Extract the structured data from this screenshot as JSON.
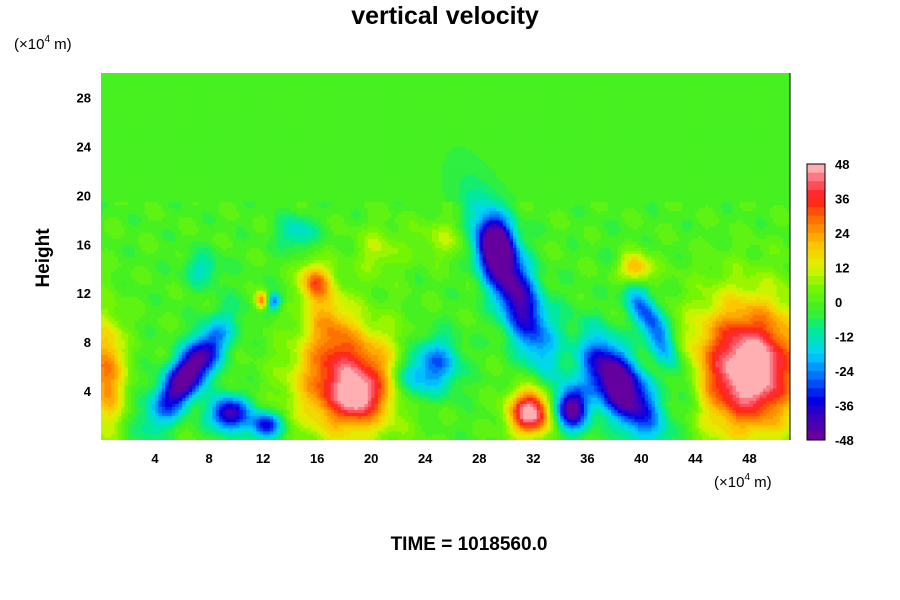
{
  "chart_data": {
    "type": "heatmap",
    "title": "vertical velocity",
    "ylabel": "Height",
    "y_unit": {
      "prefix": "(×10",
      "exp": "4",
      "suffix": " m)"
    },
    "x_unit": {
      "prefix": "(×10",
      "exp": "4",
      "suffix": " m)"
    },
    "xlim": [
      0,
      51
    ],
    "ylim": [
      0,
      30
    ],
    "x_ticks": [
      4,
      8,
      12,
      16,
      20,
      24,
      28,
      32,
      36,
      40,
      44,
      48
    ],
    "y_ticks": [
      4,
      8,
      12,
      16,
      20,
      24,
      28
    ],
    "colorbar": {
      "range": [
        -48,
        48
      ],
      "ticks": [
        48,
        36,
        24,
        12,
        0,
        -12,
        -24,
        -36,
        -48
      ],
      "levels": 32
    },
    "features": [
      {
        "x": 6.5,
        "y": 5.5,
        "sx": 1.1,
        "sy": 2.6,
        "v": -52,
        "tilt": -0.55
      },
      {
        "x": 9.5,
        "y": 2.2,
        "sx": 1.0,
        "sy": 1.0,
        "v": -42
      },
      {
        "x": 12.2,
        "y": 1.2,
        "sx": 0.8,
        "sy": 0.8,
        "v": -36
      },
      {
        "x": 18.3,
        "y": 4.8,
        "sx": 2.6,
        "sy": 3.0,
        "v": 44
      },
      {
        "x": 19,
        "y": 3.5,
        "sx": 1.0,
        "sy": 1.1,
        "v": 18
      },
      {
        "x": 15.8,
        "y": 13.0,
        "sx": 0.8,
        "sy": 1.1,
        "v": 28
      },
      {
        "x": 16.8,
        "y": 10.0,
        "sx": 1.2,
        "sy": 2.0,
        "v": 16
      },
      {
        "x": 11.9,
        "y": 11.5,
        "sx": 0.35,
        "sy": 0.5,
        "v": 30
      },
      {
        "x": 12.8,
        "y": 11.4,
        "sx": 0.4,
        "sy": 0.5,
        "v": -26
      },
      {
        "x": 24.8,
        "y": 6.2,
        "sx": 1.2,
        "sy": 1.6,
        "v": -26
      },
      {
        "x": 22.8,
        "y": 5.0,
        "sx": 0.9,
        "sy": 1.4,
        "v": -18
      },
      {
        "x": 30.5,
        "y": 12.5,
        "sx": 1.2,
        "sy": 4.2,
        "v": -44,
        "tilt": 0.35
      },
      {
        "x": 29.2,
        "y": 16.0,
        "sx": 0.9,
        "sy": 1.5,
        "v": -36
      },
      {
        "x": 31.8,
        "y": 2.3,
        "sx": 1.1,
        "sy": 1.3,
        "v": 52
      },
      {
        "x": 34.8,
        "y": 2.6,
        "sx": 0.9,
        "sy": 1.2,
        "v": -46
      },
      {
        "x": 38.3,
        "y": 4.6,
        "sx": 1.5,
        "sy": 2.8,
        "v": -54,
        "tilt": 0.5
      },
      {
        "x": 40.8,
        "y": 9.5,
        "sx": 0.8,
        "sy": 2.8,
        "v": -30,
        "tilt": 0.45
      },
      {
        "x": 39.4,
        "y": 14.0,
        "sx": 0.9,
        "sy": 0.9,
        "v": 28
      },
      {
        "x": 47.9,
        "y": 6.0,
        "sx": 2.9,
        "sy": 3.8,
        "v": 50
      },
      {
        "x": 48.2,
        "y": 5.3,
        "sx": 1.3,
        "sy": 1.8,
        "v": 10
      },
      {
        "x": 0.4,
        "y": 5.5,
        "sx": 0.9,
        "sy": 3.2,
        "v": 30
      },
      {
        "x": 20.5,
        "y": 15.5,
        "sx": 1.2,
        "sy": 1.4,
        "v": 10
      },
      {
        "x": 25.5,
        "y": 16.5,
        "sx": 1.5,
        "sy": 1.2,
        "v": 9
      },
      {
        "x": 14.5,
        "y": 17.0,
        "sx": 1.0,
        "sy": 1.0,
        "v": -14
      },
      {
        "x": 7.5,
        "y": 14.0,
        "sx": 1.0,
        "sy": 1.0,
        "v": -12
      },
      {
        "x": 35.5,
        "y": 8.0,
        "sx": 1.0,
        "sy": 1.5,
        "v": 8
      },
      {
        "x": 43.5,
        "y": 4.0,
        "sx": 1.0,
        "sy": 2.0,
        "v": -8
      }
    ]
  },
  "footer": {
    "time_label": "TIME = 1018560.0"
  }
}
